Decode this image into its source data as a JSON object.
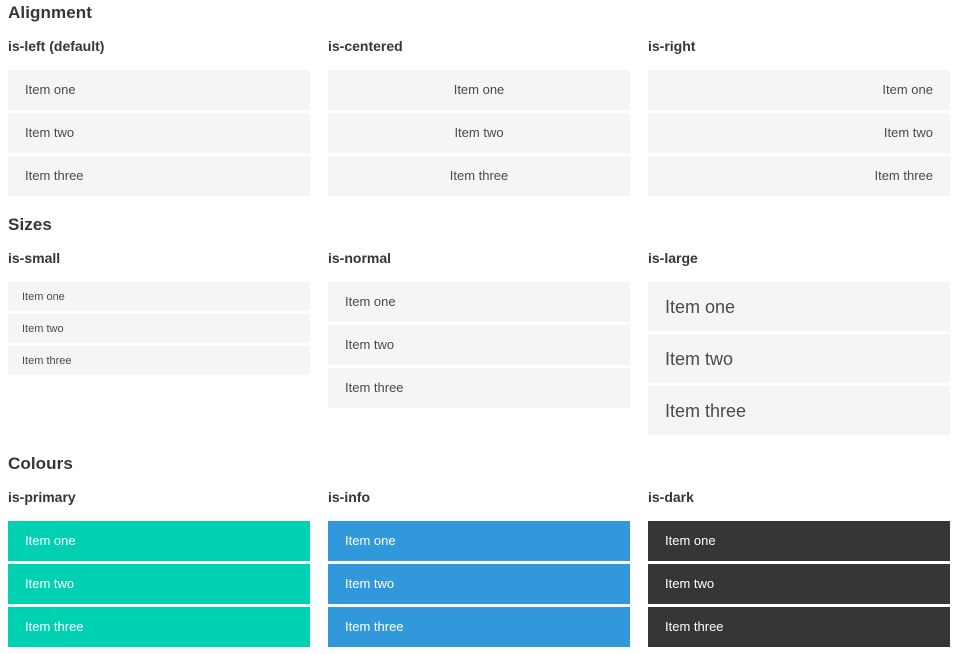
{
  "colors": {
    "primary": "#00d1b2",
    "info": "#3298dc",
    "dark": "#363636",
    "item_bg": "#f5f5f5",
    "item_text": "#4a4a4a",
    "item_text_light": "#ffffff",
    "heading": "#363636"
  },
  "sections": [
    {
      "title": "Alignment",
      "groups": [
        {
          "heading": "is-left (default)",
          "items": [
            "Item one",
            "Item two",
            "Item three"
          ]
        },
        {
          "heading": "is-centered",
          "items": [
            "Item one",
            "Item two",
            "Item three"
          ]
        },
        {
          "heading": "is-right",
          "items": [
            "Item one",
            "Item two",
            "Item three"
          ]
        }
      ]
    },
    {
      "title": "Sizes",
      "groups": [
        {
          "heading": "is-small",
          "items": [
            "Item one",
            "Item two",
            "Item three"
          ]
        },
        {
          "heading": "is-normal",
          "items": [
            "Item one",
            "Item two",
            "Item three"
          ]
        },
        {
          "heading": "is-large",
          "items": [
            "Item one",
            "Item two",
            "Item three"
          ]
        }
      ]
    },
    {
      "title": "Colours",
      "groups": [
        {
          "heading": "is-primary",
          "items": [
            "Item one",
            "Item two",
            "Item three"
          ]
        },
        {
          "heading": "is-info",
          "items": [
            "Item one",
            "Item two",
            "Item three"
          ]
        },
        {
          "heading": "is-dark",
          "items": [
            "Item one",
            "Item two",
            "Item three"
          ]
        }
      ]
    }
  ]
}
